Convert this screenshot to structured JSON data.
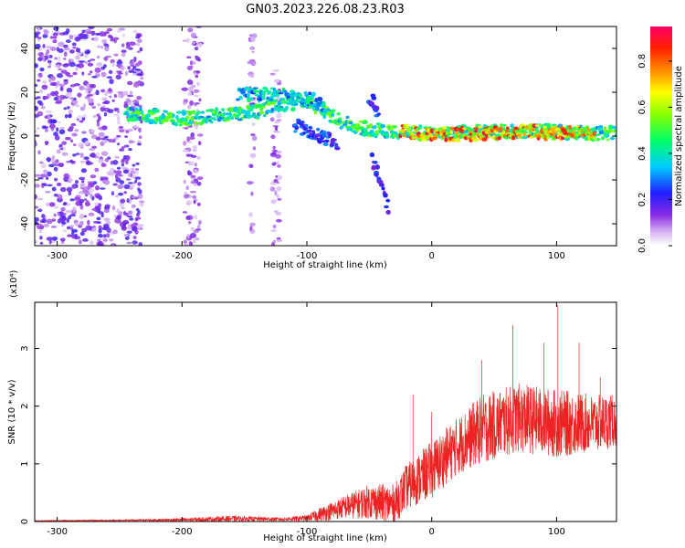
{
  "title": "GN03.2023.226.08.23.R03",
  "chart_data": [
    {
      "type": "heatmap",
      "xlabel": "Height of straight line (km)",
      "ylabel": "Frequency (Hz)",
      "xlim": [
        -318,
        148
      ],
      "ylim": [
        -50,
        50
      ],
      "xticks": [
        -300,
        -200,
        -100,
        0,
        100
      ],
      "yticks": [
        -40,
        -20,
        0,
        20,
        40
      ],
      "colorbar": {
        "label": "Normalized spectral amplitude",
        "range": [
          0.0,
          0.95
        ],
        "ticks": [
          "0.0",
          "0.2",
          "0.4",
          "0.6",
          "0.8"
        ],
        "colormap": "rainbow (white-purple-blue-cyan-green-yellow-red-magenta)"
      },
      "features": [
        {
          "name": "noise-band",
          "x": [
            -318,
            -232
          ],
          "freq": [
            -50,
            50
          ],
          "amplitude": 0.1
        },
        {
          "name": "noise-stripe",
          "x": [
            -198,
            -185
          ],
          "freq": [
            -50,
            50
          ],
          "amplitude": 0.05
        },
        {
          "name": "noise-stripe",
          "x": [
            -146,
            -142
          ],
          "freq": [
            -50,
            50
          ],
          "amplitude": 0.04
        },
        {
          "name": "noise-stripe",
          "x": [
            -128,
            -122
          ],
          "freq": [
            -50,
            30
          ],
          "amplitude": 0.04
        },
        {
          "name": "ridge-main",
          "points": [
            [
              -245,
              10
            ],
            [
              -200,
              8
            ],
            [
              -150,
              10
            ],
            [
              -120,
              14
            ],
            [
              -100,
              16
            ],
            [
              -85,
              11
            ],
            [
              -70,
              6
            ],
            [
              -50,
              3
            ],
            [
              -30,
              2
            ],
            [
              0,
              1
            ],
            [
              50,
              2
            ],
            [
              100,
              2
            ],
            [
              148,
              1
            ]
          ],
          "amplitude": 0.55
        },
        {
          "name": "ridge-upper",
          "points": [
            [
              -155,
              19
            ],
            [
              -130,
              19
            ],
            [
              -110,
              18
            ],
            [
              -95,
              17
            ],
            [
              -85,
              12
            ]
          ],
          "amplitude": 0.45
        },
        {
          "name": "ridge-lower",
          "points": [
            [
              -110,
              5
            ],
            [
              -90,
              0
            ],
            [
              -75,
              -3
            ]
          ],
          "amplitude": 0.3
        },
        {
          "name": "ridge-peak",
          "points": [
            [
              -50,
              18
            ],
            [
              -45,
              14
            ],
            [
              -42,
              8
            ]
          ],
          "amplitude": 0.3
        },
        {
          "name": "ridge-descent",
          "points": [
            [
              -48,
              -10
            ],
            [
              -40,
              -22
            ],
            [
              -34,
              -35
            ]
          ],
          "amplitude": 0.25
        },
        {
          "name": "ridge-strong",
          "points": [
            [
              -25,
              2
            ],
            [
              0,
              1
            ],
            [
              30,
              1
            ],
            [
              80,
              2
            ],
            [
              130,
              1
            ]
          ],
          "amplitude": 0.9
        }
      ]
    },
    {
      "type": "line",
      "xlabel": "Height of straight line (km)",
      "ylabel": "SNR (10 * v/v)",
      "y_multiplier": "(x10⁴)",
      "xlim": [
        -318,
        148
      ],
      "ylim": [
        0,
        3.8
      ],
      "xticks": [
        -300,
        -200,
        -100,
        0,
        100
      ],
      "yticks": [
        0,
        1,
        2,
        3
      ],
      "series": [
        {
          "color": "#ee2222",
          "envelope": [
            {
              "x": -318,
              "mean": 0.01,
              "amp": 0.01
            },
            {
              "x": -250,
              "mean": 0.02,
              "amp": 0.01
            },
            {
              "x": -200,
              "mean": 0.03,
              "amp": 0.03
            },
            {
              "x": -160,
              "mean": 0.05,
              "amp": 0.05
            },
            {
              "x": -120,
              "mean": 0.04,
              "amp": 0.03
            },
            {
              "x": -100,
              "mean": 0.06,
              "amp": 0.05
            },
            {
              "x": -90,
              "mean": 0.12,
              "amp": 0.12
            },
            {
              "x": -70,
              "mean": 0.25,
              "amp": 0.2
            },
            {
              "x": -50,
              "mean": 0.35,
              "amp": 0.3
            },
            {
              "x": -30,
              "mean": 0.3,
              "amp": 0.35
            },
            {
              "x": -20,
              "mean": 0.6,
              "amp": 0.4
            },
            {
              "x": 0,
              "mean": 0.9,
              "amp": 0.5
            },
            {
              "x": 20,
              "mean": 1.3,
              "amp": 0.5
            },
            {
              "x": 40,
              "mean": 1.6,
              "amp": 0.6
            },
            {
              "x": 70,
              "mean": 1.8,
              "amp": 0.6
            },
            {
              "x": 100,
              "mean": 1.7,
              "amp": 0.6
            },
            {
              "x": 130,
              "mean": 1.7,
              "amp": 0.5
            },
            {
              "x": 148,
              "mean": 1.75,
              "amp": 0.45
            }
          ],
          "spikes": [
            [
              -15,
              2.2
            ],
            [
              0,
              1.9
            ],
            [
              40,
              2.8
            ],
            [
              65,
              3.4
            ],
            [
              90,
              3.1
            ],
            [
              101,
              3.75
            ],
            [
              118,
              3.1
            ],
            [
              135,
              2.5
            ]
          ]
        }
      ]
    }
  ]
}
